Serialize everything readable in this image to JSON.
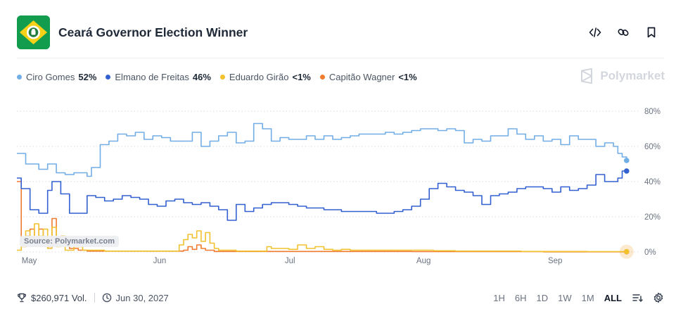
{
  "header": {
    "title": "Ceará Governor Election Winner",
    "flag_icon": "ceara-flag-icon",
    "actions": [
      "embed-code-icon",
      "link-icon",
      "bookmark-icon"
    ]
  },
  "legend": [
    {
      "name": "Ciro Gomes",
      "pct": "52%",
      "color": "#72aee6"
    },
    {
      "name": "Elmano de Freitas",
      "pct": "46%",
      "color": "#3360d1"
    },
    {
      "name": "Eduardo Girão",
      "pct": "<1%",
      "color": "#f2c12e"
    },
    {
      "name": "Capitão Wagner",
      "pct": "<1%",
      "color": "#f07b2f"
    }
  ],
  "brand": "Polymarket",
  "source": "Source: Polymarket.com",
  "chart_data": {
    "type": "line",
    "x_axis_labels": [
      "May",
      "Jun",
      "Jul",
      "Aug",
      "Sep"
    ],
    "y_axis_labels": [
      "80%",
      "60%",
      "40%",
      "20%",
      "0%"
    ],
    "ylim": [
      0,
      80
    ],
    "grid": true,
    "x_domain": [
      0,
      140
    ],
    "month_ticks": [
      3,
      33,
      63,
      93,
      123
    ],
    "series": [
      {
        "name": "Ciro Gomes",
        "color": "#72aee6",
        "points": [
          [
            0,
            56
          ],
          [
            2,
            50
          ],
          [
            5,
            47
          ],
          [
            7,
            50
          ],
          [
            9,
            45
          ],
          [
            11,
            44
          ],
          [
            13,
            45
          ],
          [
            16,
            43
          ],
          [
            17,
            48
          ],
          [
            19,
            61
          ],
          [
            21,
            63
          ],
          [
            23,
            67
          ],
          [
            25,
            66
          ],
          [
            27,
            68
          ],
          [
            29,
            64
          ],
          [
            31,
            66
          ],
          [
            33,
            65
          ],
          [
            35,
            63
          ],
          [
            37,
            63
          ],
          [
            40,
            68
          ],
          [
            42,
            60
          ],
          [
            44,
            63
          ],
          [
            46,
            66
          ],
          [
            48,
            68
          ],
          [
            50,
            62
          ],
          [
            52,
            63
          ],
          [
            54,
            73
          ],
          [
            56,
            70
          ],
          [
            58,
            63
          ],
          [
            60,
            65
          ],
          [
            62,
            64
          ],
          [
            64,
            64
          ],
          [
            66,
            66
          ],
          [
            68,
            64
          ],
          [
            70,
            66
          ],
          [
            72,
            64
          ],
          [
            74,
            65
          ],
          [
            76,
            66
          ],
          [
            78,
            67
          ],
          [
            80,
            67
          ],
          [
            82,
            67
          ],
          [
            84,
            68
          ],
          [
            86,
            67
          ],
          [
            88,
            68
          ],
          [
            90,
            69
          ],
          [
            92,
            70
          ],
          [
            94,
            70
          ],
          [
            96,
            69
          ],
          [
            98,
            70
          ],
          [
            100,
            69
          ],
          [
            102,
            62
          ],
          [
            104,
            64
          ],
          [
            106,
            63
          ],
          [
            108,
            66
          ],
          [
            110,
            66
          ],
          [
            112,
            70
          ],
          [
            114,
            67
          ],
          [
            116,
            64
          ],
          [
            118,
            66
          ],
          [
            120,
            63
          ],
          [
            122,
            64
          ],
          [
            124,
            61
          ],
          [
            126,
            66
          ],
          [
            128,
            64
          ],
          [
            130,
            64
          ],
          [
            132,
            60
          ],
          [
            134,
            62
          ],
          [
            136,
            60
          ],
          [
            137,
            56
          ],
          [
            138,
            54
          ],
          [
            139,
            52
          ]
        ]
      },
      {
        "name": "Elmano de Freitas",
        "color": "#3360d1",
        "points": [
          [
            0,
            42
          ],
          [
            1,
            36
          ],
          [
            3,
            24
          ],
          [
            5,
            22
          ],
          [
            7,
            35
          ],
          [
            8,
            40
          ],
          [
            10,
            33
          ],
          [
            12,
            22
          ],
          [
            14,
            22
          ],
          [
            16,
            32
          ],
          [
            18,
            31
          ],
          [
            20,
            29
          ],
          [
            22,
            30
          ],
          [
            24,
            32
          ],
          [
            26,
            31
          ],
          [
            28,
            30
          ],
          [
            30,
            27
          ],
          [
            32,
            26
          ],
          [
            34,
            29
          ],
          [
            36,
            30
          ],
          [
            38,
            28
          ],
          [
            40,
            27
          ],
          [
            42,
            28
          ],
          [
            44,
            26
          ],
          [
            46,
            24
          ],
          [
            48,
            18
          ],
          [
            50,
            27
          ],
          [
            52,
            23
          ],
          [
            54,
            25
          ],
          [
            56,
            27
          ],
          [
            58,
            28
          ],
          [
            60,
            28
          ],
          [
            62,
            27
          ],
          [
            64,
            26
          ],
          [
            66,
            25
          ],
          [
            68,
            25
          ],
          [
            70,
            24
          ],
          [
            72,
            24
          ],
          [
            74,
            23
          ],
          [
            76,
            23
          ],
          [
            78,
            23
          ],
          [
            80,
            23
          ],
          [
            82,
            22
          ],
          [
            84,
            22
          ],
          [
            86,
            23
          ],
          [
            88,
            24
          ],
          [
            90,
            26
          ],
          [
            92,
            30
          ],
          [
            94,
            36
          ],
          [
            96,
            39
          ],
          [
            98,
            37
          ],
          [
            100,
            35
          ],
          [
            102,
            34
          ],
          [
            104,
            32
          ],
          [
            106,
            27
          ],
          [
            108,
            32
          ],
          [
            110,
            33
          ],
          [
            112,
            34
          ],
          [
            114,
            36
          ],
          [
            116,
            37
          ],
          [
            118,
            37
          ],
          [
            120,
            36
          ],
          [
            122,
            34
          ],
          [
            124,
            37
          ],
          [
            126,
            35
          ],
          [
            128,
            36
          ],
          [
            130,
            38
          ],
          [
            132,
            44
          ],
          [
            134,
            40
          ],
          [
            136,
            40
          ],
          [
            137,
            42
          ],
          [
            138,
            46
          ],
          [
            139,
            46
          ]
        ]
      },
      {
        "name": "Eduardo Girão",
        "color": "#f2c12e",
        "points": [
          [
            0,
            1
          ],
          [
            1,
            3
          ],
          [
            2,
            12
          ],
          [
            3,
            8
          ],
          [
            4,
            16
          ],
          [
            5,
            9
          ],
          [
            6,
            13
          ],
          [
            7,
            2
          ],
          [
            8,
            14
          ],
          [
            9,
            3
          ],
          [
            10,
            9
          ],
          [
            11,
            1
          ],
          [
            13,
            3
          ],
          [
            15,
            1
          ],
          [
            20,
            0.5
          ],
          [
            25,
            0.5
          ],
          [
            30,
            0.5
          ],
          [
            35,
            0.5
          ],
          [
            37,
            4
          ],
          [
            38,
            7
          ],
          [
            39,
            10
          ],
          [
            40,
            8
          ],
          [
            41,
            12
          ],
          [
            42,
            6
          ],
          [
            43,
            11
          ],
          [
            44,
            5
          ],
          [
            45,
            2
          ],
          [
            46,
            1
          ],
          [
            50,
            0.5
          ],
          [
            55,
            0.5
          ],
          [
            57,
            3
          ],
          [
            58,
            2
          ],
          [
            60,
            2
          ],
          [
            62,
            1.5
          ],
          [
            64,
            4
          ],
          [
            66,
            2
          ],
          [
            68,
            3
          ],
          [
            70,
            1.5
          ],
          [
            72,
            1
          ],
          [
            74,
            1.5
          ],
          [
            76,
            1
          ],
          [
            80,
            1
          ],
          [
            85,
            1
          ],
          [
            90,
            1
          ],
          [
            95,
            0.7
          ],
          [
            100,
            0.5
          ],
          [
            105,
            0.5
          ],
          [
            110,
            0.5
          ],
          [
            115,
            0.3
          ],
          [
            120,
            0.3
          ],
          [
            125,
            0.3
          ],
          [
            130,
            0.2
          ],
          [
            135,
            0.2
          ],
          [
            139,
            0.2
          ]
        ]
      },
      {
        "name": "Capitão Wagner",
        "color": "#f07b2f",
        "points": [
          [
            0,
            40
          ],
          [
            1,
            5
          ],
          [
            2,
            9
          ],
          [
            3,
            13
          ],
          [
            4,
            6
          ],
          [
            5,
            13
          ],
          [
            6,
            7
          ],
          [
            7,
            3
          ],
          [
            8,
            19
          ],
          [
            9,
            5
          ],
          [
            10,
            9
          ],
          [
            11,
            4
          ],
          [
            12,
            2
          ],
          [
            14,
            1
          ],
          [
            16,
            0.5
          ],
          [
            20,
            0.5
          ],
          [
            25,
            0.5
          ],
          [
            30,
            0.5
          ],
          [
            35,
            0.5
          ],
          [
            38,
            1
          ],
          [
            39,
            3
          ],
          [
            40,
            1.5
          ],
          [
            41,
            4
          ],
          [
            42,
            2
          ],
          [
            43,
            1
          ],
          [
            45,
            0.3
          ],
          [
            50,
            0.3
          ],
          [
            60,
            0.3
          ],
          [
            70,
            0.3
          ],
          [
            80,
            0.3
          ],
          [
            90,
            0.2
          ],
          [
            100,
            0.2
          ],
          [
            110,
            0.2
          ],
          [
            120,
            0.1
          ],
          [
            130,
            0.1
          ],
          [
            139,
            0.1
          ]
        ]
      }
    ]
  },
  "footer": {
    "volume": "$260,971 Vol.",
    "date": "Jun 30, 2027",
    "ranges": [
      "1H",
      "6H",
      "1D",
      "1W",
      "1M",
      "ALL"
    ],
    "active_range": "ALL"
  }
}
